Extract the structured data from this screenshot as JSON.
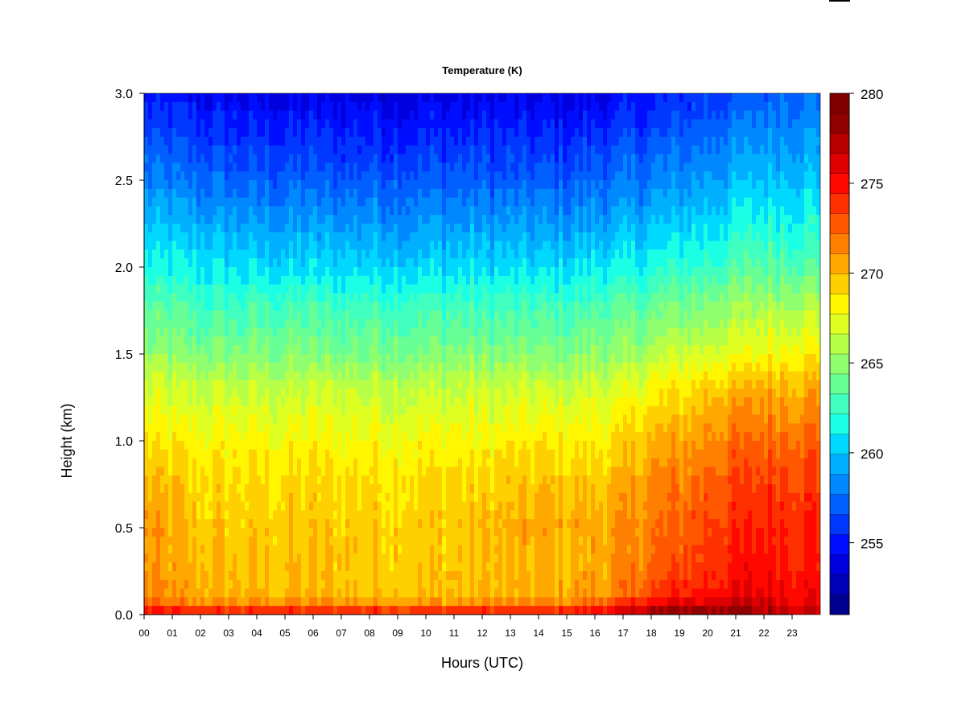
{
  "chart_data": {
    "type": "heatmap",
    "title": "Temperature (K)",
    "xlabel": "Hours (UTC)",
    "ylabel": "Height (km)",
    "x_tick_labels": [
      "00",
      "01",
      "02",
      "03",
      "04",
      "05",
      "06",
      "07",
      "08",
      "09",
      "10",
      "11",
      "12",
      "13",
      "14",
      "15",
      "16",
      "17",
      "18",
      "19",
      "20",
      "21",
      "22",
      "23"
    ],
    "y_ticks": [
      0.0,
      0.5,
      1.0,
      1.5,
      2.0,
      2.5,
      3.0
    ],
    "y_tick_labels": [
      "0.0",
      "0.5",
      "1.0",
      "1.5",
      "2.0",
      "2.5",
      "3.0"
    ],
    "xlim": [
      0,
      24
    ],
    "ylim": [
      0,
      3
    ],
    "colorbar": {
      "min": 251,
      "max": 280,
      "ticks": [
        255,
        260,
        265,
        270,
        275,
        280
      ],
      "tick_labels": [
        "255",
        "260",
        "265",
        "270",
        "275",
        "280"
      ],
      "colors": [
        "#00008F",
        "#0000B8",
        "#0000DE",
        "#000EFF",
        "#0038FF",
        "#0060FF",
        "#0088FF",
        "#00B0FF",
        "#00D8FF",
        "#1BFFE4",
        "#40FFBF",
        "#68FF97",
        "#90FF6F",
        "#B8FF47",
        "#DEFF21",
        "#FFF600",
        "#FFD000",
        "#FFA800",
        "#FF8000",
        "#FF5800",
        "#FF3000",
        "#FF0800",
        "#DE0000",
        "#B80000",
        "#8F0000",
        "#800000"
      ]
    },
    "temperature_profiles_K": {
      "heights_km": [
        0.0,
        0.05,
        0.1,
        0.3,
        0.5,
        0.8,
        1.0,
        1.3,
        1.5,
        1.8,
        2.0,
        2.5,
        3.0
      ],
      "hours": [
        0,
        2,
        4,
        6,
        8,
        10,
        12,
        14,
        15,
        16,
        17,
        18,
        19,
        20,
        21,
        22,
        23,
        24
      ],
      "values": [
        [
          276.0,
          272.5,
          271.5,
          270.8,
          271.0,
          270.0,
          268.5,
          267.0,
          265.0,
          263.0,
          261.5,
          258.0,
          255.0
        ],
        [
          275.5,
          272.0,
          270.5,
          270.0,
          269.5,
          269.0,
          268.0,
          266.5,
          264.5,
          262.5,
          261.0,
          257.5,
          254.5
        ],
        [
          275.5,
          272.0,
          270.0,
          269.8,
          269.5,
          269.0,
          268.0,
          266.5,
          264.5,
          262.5,
          260.5,
          257.0,
          254.0
        ],
        [
          275.5,
          272.0,
          270.0,
          269.8,
          269.5,
          269.0,
          268.0,
          266.5,
          264.5,
          262.5,
          260.5,
          257.0,
          254.0
        ],
        [
          275.5,
          272.0,
          270.0,
          269.5,
          269.5,
          269.0,
          268.0,
          266.5,
          264.5,
          262.5,
          260.5,
          257.0,
          254.0
        ],
        [
          275.5,
          272.0,
          270.0,
          269.5,
          269.5,
          269.0,
          268.0,
          266.5,
          264.5,
          262.5,
          260.5,
          257.0,
          254.0
        ],
        [
          275.5,
          272.0,
          270.0,
          269.8,
          269.8,
          269.0,
          268.0,
          266.5,
          264.5,
          262.5,
          260.5,
          257.0,
          254.0
        ],
        [
          275.5,
          272.0,
          270.5,
          270.0,
          270.5,
          269.5,
          268.5,
          266.5,
          264.5,
          262.5,
          260.5,
          257.0,
          254.0
        ],
        [
          276.0,
          272.0,
          270.5,
          270.0,
          270.5,
          269.5,
          268.5,
          266.5,
          264.5,
          262.5,
          260.5,
          257.0,
          254.0
        ],
        [
          276.5,
          273.0,
          271.0,
          270.5,
          270.5,
          269.5,
          268.5,
          267.0,
          265.0,
          263.0,
          261.0,
          257.5,
          254.0
        ],
        [
          277.5,
          274.0,
          272.0,
          271.0,
          271.0,
          270.0,
          269.0,
          267.0,
          265.0,
          263.0,
          261.0,
          257.5,
          254.5
        ],
        [
          278.5,
          276.0,
          273.5,
          272.0,
          272.0,
          271.0,
          270.0,
          268.0,
          266.0,
          263.5,
          261.5,
          258.0,
          255.0
        ],
        [
          279.0,
          277.0,
          274.5,
          273.0,
          272.5,
          271.5,
          270.5,
          268.5,
          266.5,
          264.0,
          262.0,
          258.5,
          255.5
        ],
        [
          279.0,
          277.0,
          275.0,
          274.0,
          273.5,
          272.5,
          271.5,
          269.5,
          267.0,
          264.5,
          262.5,
          259.0,
          256.0
        ],
        [
          278.5,
          277.0,
          275.5,
          274.5,
          274.0,
          273.0,
          272.0,
          270.0,
          267.5,
          265.0,
          263.0,
          259.5,
          256.5
        ],
        [
          278.0,
          277.0,
          276.0,
          275.0,
          274.5,
          273.5,
          272.5,
          270.5,
          268.0,
          265.5,
          263.5,
          260.0,
          257.0
        ],
        [
          277.5,
          276.5,
          275.5,
          275.0,
          274.5,
          273.5,
          272.5,
          270.5,
          268.5,
          265.5,
          263.5,
          260.0,
          257.5
        ],
        [
          277.0,
          276.0,
          275.0,
          274.5,
          274.5,
          273.5,
          272.5,
          270.5,
          268.5,
          265.5,
          263.5,
          260.0,
          257.5
        ]
      ]
    }
  }
}
